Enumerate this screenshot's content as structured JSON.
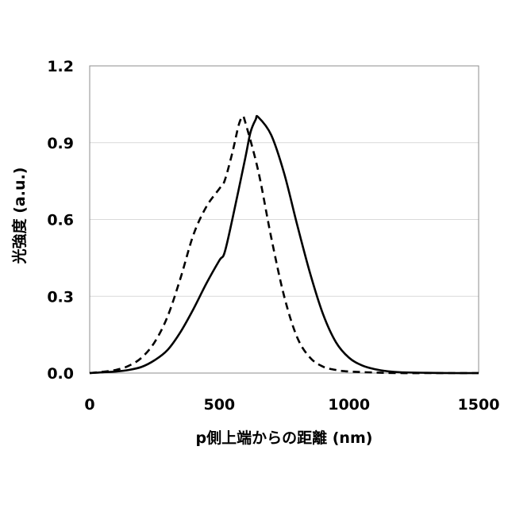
{
  "chart_data": {
    "type": "line",
    "xlabel": "p側上端からの距離 (nm)",
    "ylabel": "光強度 (a.u.)",
    "xlim": [
      0,
      1500
    ],
    "ylim": [
      0,
      1.2
    ],
    "xticks": [
      "0",
      "500",
      "1000",
      "1500"
    ],
    "xtick_values": [
      0,
      500,
      1000,
      1500
    ],
    "yticks": [
      "0.0",
      "0.3",
      "0.6",
      "0.9",
      "1.2"
    ],
    "ytick_values": [
      0,
      0.3,
      0.6,
      0.9,
      1.2
    ],
    "grid": true,
    "legend": "none",
    "series": [
      {
        "style": "solid",
        "color": "#000000",
        "x": [
          0,
          50,
          100,
          150,
          200,
          250,
          300,
          350,
          400,
          450,
          500,
          520,
          550,
          600,
          620,
          640,
          650,
          700,
          750,
          800,
          850,
          900,
          950,
          1000,
          1050,
          1100,
          1150,
          1200,
          1300,
          1400,
          1500
        ],
        "y": [
          0.0,
          0.003,
          0.006,
          0.012,
          0.024,
          0.05,
          0.09,
          0.16,
          0.25,
          0.35,
          0.44,
          0.47,
          0.6,
          0.84,
          0.94,
          0.99,
          1.0,
          0.93,
          0.78,
          0.58,
          0.39,
          0.23,
          0.12,
          0.06,
          0.03,
          0.015,
          0.007,
          0.003,
          0.001,
          0.0,
          0.0
        ]
      },
      {
        "style": "dashed",
        "color": "#000000",
        "x": [
          0,
          50,
          100,
          150,
          200,
          250,
          300,
          350,
          400,
          450,
          500,
          520,
          550,
          575,
          590,
          600,
          650,
          700,
          750,
          800,
          850,
          900,
          950,
          1000,
          1100,
          1200,
          1300,
          1400,
          1500
        ],
        "y": [
          0.0,
          0.005,
          0.012,
          0.028,
          0.06,
          0.12,
          0.22,
          0.37,
          0.54,
          0.65,
          0.72,
          0.75,
          0.86,
          0.97,
          1.0,
          0.98,
          0.79,
          0.53,
          0.3,
          0.14,
          0.06,
          0.025,
          0.012,
          0.006,
          0.002,
          0.0,
          0.0,
          0.0,
          0.0
        ]
      }
    ]
  }
}
